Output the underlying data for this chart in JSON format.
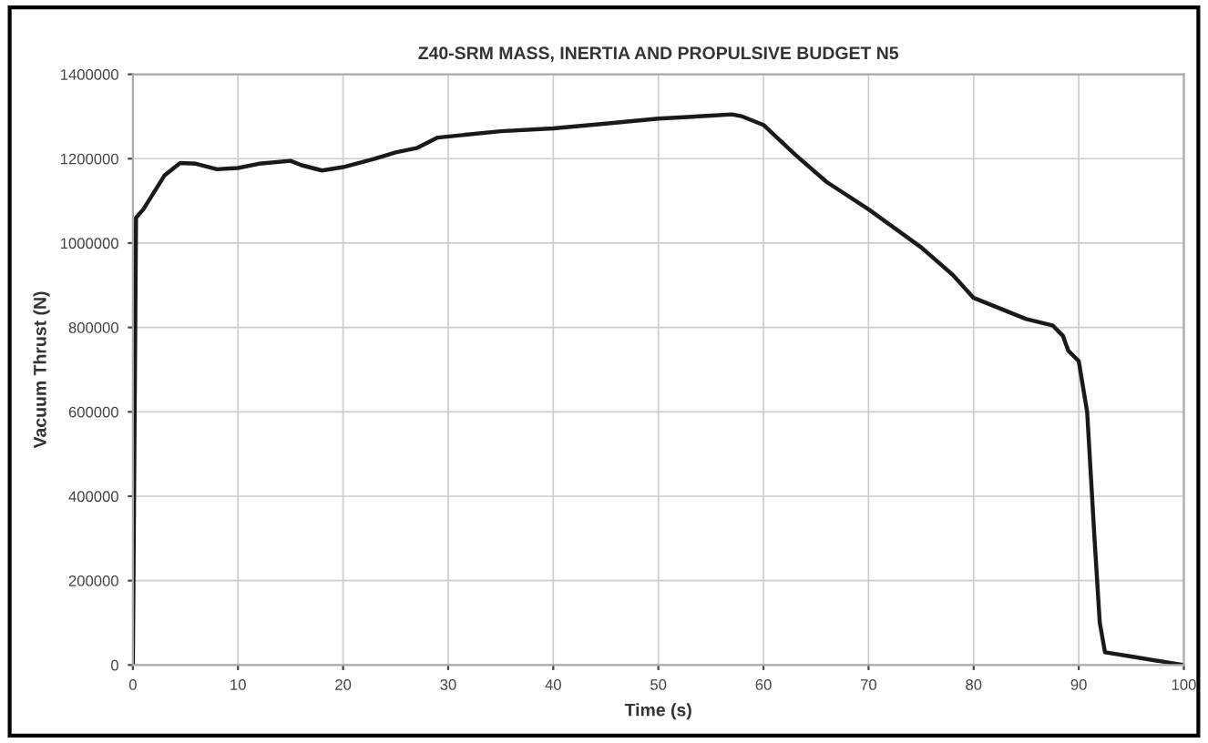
{
  "chart_data": {
    "type": "line",
    "title": "Z40-SRM MASS, INERTIA AND PROPULSIVE BUDGET N5",
    "xlabel": "Time (s)",
    "ylabel": "Vacuum Thrust (N)",
    "x": [
      0,
      0.3,
      1,
      3,
      4.5,
      6,
      8,
      10,
      12,
      15,
      16,
      18,
      20,
      23,
      25,
      27,
      29,
      35,
      40,
      45,
      50,
      55,
      57,
      58,
      60,
      63,
      66,
      70,
      75,
      78,
      80,
      85,
      87.5,
      88.5,
      89,
      90,
      90.8,
      91.5,
      92,
      92.5,
      95,
      98,
      100
    ],
    "series": [
      {
        "color": "#1a1a1a",
        "values": [
          0,
          1060000,
          1080000,
          1160000,
          1190000,
          1188000,
          1175000,
          1178000,
          1188000,
          1195000,
          1185000,
          1172000,
          1180000,
          1200000,
          1215000,
          1225000,
          1250000,
          1265000,
          1272000,
          1283000,
          1295000,
          1302000,
          1305000,
          1300000,
          1280000,
          1210000,
          1145000,
          1080000,
          990000,
          925000,
          870000,
          820000,
          805000,
          780000,
          745000,
          720000,
          600000,
          300000,
          100000,
          30000,
          20000,
          8000,
          0
        ]
      }
    ],
    "xlim": [
      0,
      100
    ],
    "ylim": [
      0,
      1400000
    ],
    "xticks": [
      0,
      10,
      20,
      30,
      40,
      50,
      60,
      70,
      80,
      90,
      100
    ],
    "yticks": [
      0,
      200000,
      400000,
      600000,
      800000,
      1000000,
      1200000,
      1400000
    ],
    "grid": true,
    "legend": false,
    "marker": "none",
    "line_style": "solid"
  }
}
